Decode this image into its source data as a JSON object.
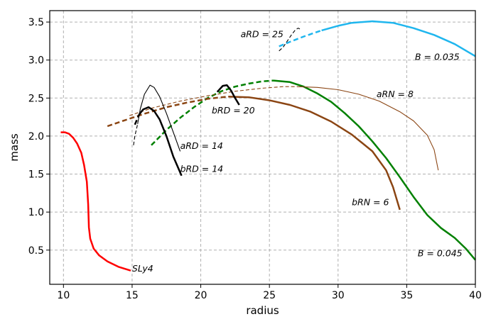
{
  "chart_data": {
    "type": "line",
    "title": "",
    "xlabel": "radius",
    "ylabel": "mass",
    "xlim": [
      9,
      40
    ],
    "ylim": [
      0.05,
      3.65
    ],
    "xticks": [
      10,
      15,
      20,
      25,
      30,
      35,
      40
    ],
    "yticks": [
      0.5,
      1.0,
      1.5,
      2.0,
      2.5,
      3.0,
      3.5
    ],
    "xtick_labels": [
      "10",
      "15",
      "20",
      "25",
      "30",
      "35",
      "40"
    ],
    "ytick_labels": [
      "0.5",
      "1.0",
      "1.5",
      "2.0",
      "2.5",
      "3.0",
      "3.5"
    ],
    "grid": true,
    "series": [
      {
        "name": "SLy4",
        "label_text": "SLy4",
        "color": "#ff0000",
        "width": 2.5,
        "dash": "solid",
        "points": [
          [
            9.8,
            2.05
          ],
          [
            10.1,
            2.05
          ],
          [
            10.4,
            2.03
          ],
          [
            10.7,
            1.98
          ],
          [
            11.0,
            1.9
          ],
          [
            11.3,
            1.78
          ],
          [
            11.5,
            1.62
          ],
          [
            11.7,
            1.4
          ],
          [
            11.8,
            1.1
          ],
          [
            11.85,
            0.8
          ],
          [
            11.95,
            0.65
          ],
          [
            12.2,
            0.52
          ],
          [
            12.6,
            0.43
          ],
          [
            13.2,
            0.35
          ],
          [
            14.0,
            0.28
          ],
          [
            14.9,
            0.23
          ]
        ],
        "label_at": [
          15.0,
          0.22
        ]
      },
      {
        "name": "B=0.035",
        "label_text": "B = 0.035",
        "color": "#1fb6ee",
        "width": 2.5,
        "dash": "mixed",
        "dash_until_x": 28.8,
        "points": [
          [
            25.7,
            3.18
          ],
          [
            26.5,
            3.24
          ],
          [
            27.5,
            3.31
          ],
          [
            28.8,
            3.39
          ],
          [
            30.0,
            3.45
          ],
          [
            31.0,
            3.49
          ],
          [
            32.5,
            3.51
          ],
          [
            34.0,
            3.49
          ],
          [
            35.5,
            3.42
          ],
          [
            37.0,
            3.33
          ],
          [
            38.5,
            3.21
          ],
          [
            40.0,
            3.05
          ]
        ],
        "label_at": [
          35.6,
          3.0
        ]
      },
      {
        "name": "B=0.045",
        "label_text": "B = 0.045",
        "color": "#008000",
        "width": 2.5,
        "dash": "mixed",
        "dash_until_x": 25.3,
        "points": [
          [
            16.4,
            1.88
          ],
          [
            17.5,
            2.08
          ],
          [
            18.5,
            2.24
          ],
          [
            19.5,
            2.38
          ],
          [
            20.5,
            2.5
          ],
          [
            21.5,
            2.59
          ],
          [
            22.5,
            2.65
          ],
          [
            23.5,
            2.69
          ],
          [
            24.5,
            2.72
          ],
          [
            25.3,
            2.73
          ],
          [
            26.5,
            2.71
          ],
          [
            27.5,
            2.65
          ],
          [
            28.5,
            2.56
          ],
          [
            29.5,
            2.45
          ],
          [
            30.5,
            2.3
          ],
          [
            31.5,
            2.13
          ],
          [
            32.5,
            1.93
          ],
          [
            33.5,
            1.71
          ],
          [
            34.5,
            1.46
          ],
          [
            35.5,
            1.2
          ],
          [
            36.5,
            0.96
          ],
          [
            37.5,
            0.79
          ],
          [
            38.5,
            0.66
          ],
          [
            39.3,
            0.52
          ],
          [
            40.0,
            0.37
          ]
        ],
        "label_at": [
          35.8,
          0.42
        ]
      },
      {
        "name": "bRN=6",
        "label_text": "bRN = 6",
        "color": "#8b4513",
        "width": 2.5,
        "dash": "mixed",
        "dash_until_x": 22.0,
        "points": [
          [
            13.2,
            2.13
          ],
          [
            14.5,
            2.21
          ],
          [
            16.0,
            2.3
          ],
          [
            17.5,
            2.38
          ],
          [
            19.0,
            2.44
          ],
          [
            20.5,
            2.49
          ],
          [
            22.0,
            2.52
          ],
          [
            23.5,
            2.51
          ],
          [
            25.0,
            2.47
          ],
          [
            26.5,
            2.41
          ],
          [
            28.0,
            2.32
          ],
          [
            29.5,
            2.19
          ],
          [
            31.0,
            2.02
          ],
          [
            32.5,
            1.8
          ],
          [
            33.5,
            1.55
          ],
          [
            34.0,
            1.33
          ],
          [
            34.5,
            1.03
          ]
        ],
        "label_at": [
          31.0,
          1.09
        ]
      },
      {
        "name": "aRN=8",
        "label_text": "aRN = 8",
        "color": "#8b4513",
        "width": 1.1,
        "dash": "mixed",
        "dash_until_x": 27.0,
        "points": [
          [
            14.8,
            2.27
          ],
          [
            16.5,
            2.37
          ],
          [
            18.5,
            2.46
          ],
          [
            20.5,
            2.53
          ],
          [
            22.5,
            2.59
          ],
          [
            24.5,
            2.63
          ],
          [
            26.0,
            2.65
          ],
          [
            27.0,
            2.65
          ],
          [
            28.5,
            2.64
          ],
          [
            30.0,
            2.61
          ],
          [
            31.5,
            2.55
          ],
          [
            33.0,
            2.46
          ],
          [
            34.5,
            2.32
          ],
          [
            35.5,
            2.2
          ],
          [
            36.5,
            2.01
          ],
          [
            37.0,
            1.82
          ],
          [
            37.3,
            1.55
          ]
        ],
        "label_at": [
          32.8,
          2.51
        ]
      },
      {
        "name": "aRD=14",
        "label_text": "aRD = 14",
        "color": "#000000",
        "width": 1.1,
        "dash": "mixed",
        "dash_until_x": 15.4,
        "points": [
          [
            15.1,
            1.88
          ],
          [
            15.2,
            2.0
          ],
          [
            15.4,
            2.16
          ],
          [
            15.6,
            2.36
          ],
          [
            15.9,
            2.55
          ],
          [
            16.3,
            2.67
          ],
          [
            16.6,
            2.64
          ],
          [
            17.0,
            2.52
          ],
          [
            17.5,
            2.3
          ],
          [
            18.0,
            2.05
          ],
          [
            18.5,
            1.8
          ]
        ],
        "label_at": [
          18.5,
          1.83
        ]
      },
      {
        "name": "bRD=14",
        "label_text": "bRD = 14",
        "color": "#000000",
        "width": 2.5,
        "dash": "mixed",
        "dash_until_x": 15.5,
        "points": [
          [
            15.2,
            2.15
          ],
          [
            15.5,
            2.28
          ],
          [
            15.8,
            2.35
          ],
          [
            16.2,
            2.38
          ],
          [
            16.6,
            2.33
          ],
          [
            17.0,
            2.22
          ],
          [
            17.5,
            2.0
          ],
          [
            18.0,
            1.73
          ],
          [
            18.6,
            1.48
          ]
        ],
        "label_at": [
          18.5,
          1.53
        ]
      },
      {
        "name": "bRD=20",
        "label_text": "bRD = 20",
        "color": "#000000",
        "width": 2.5,
        "dash": "solid",
        "points": [
          [
            21.2,
            2.58
          ],
          [
            21.6,
            2.66
          ],
          [
            21.9,
            2.67
          ],
          [
            22.2,
            2.6
          ],
          [
            22.5,
            2.5
          ],
          [
            22.8,
            2.41
          ]
        ],
        "label_at": [
          20.8,
          2.3
        ]
      },
      {
        "name": "aRD=25",
        "label_text": "aRD = 25",
        "color": "#000000",
        "width": 1.1,
        "dash": "mixed",
        "dash_until_x": 27.3,
        "points": [
          [
            25.7,
            3.12
          ],
          [
            26.0,
            3.17
          ],
          [
            26.3,
            3.25
          ],
          [
            26.6,
            3.33
          ],
          [
            26.9,
            3.4
          ],
          [
            27.1,
            3.42
          ],
          [
            27.3,
            3.4
          ]
        ],
        "label_at": [
          22.9,
          3.3
        ]
      }
    ]
  }
}
